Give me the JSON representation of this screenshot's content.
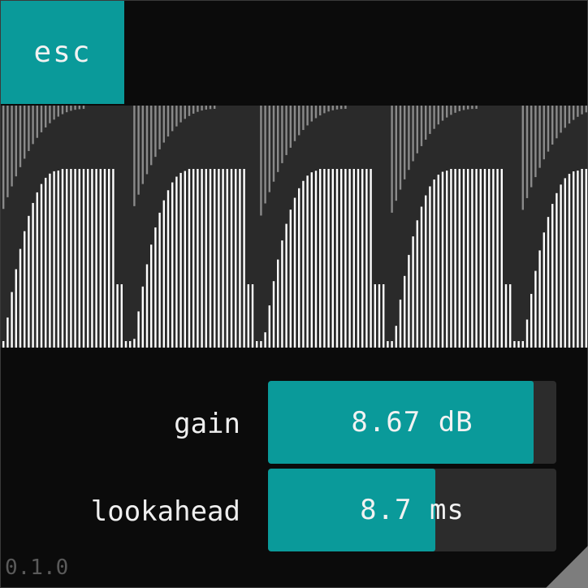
{
  "app": {
    "esc_label": "esc",
    "version": "0.1.0"
  },
  "params": [
    {
      "name": "gain",
      "value_text": "8.67 dB",
      "fraction": 0.92
    },
    {
      "name": "lookahead",
      "value_text": "8.7 ms",
      "fraction": 0.58
    }
  ],
  "colors": {
    "accent": "#0a9a9a",
    "background": "#0b0b0b",
    "meter_background": "#2a2a2a",
    "slider_track": "#2c2c2c",
    "gain_reduction_bars": "#8a8a8a",
    "envelope_bars": "#ffffff",
    "text": "#f2f2f2",
    "version_text": "#5a5a5a"
  },
  "icons": {
    "resize_handle": "resize-corner-icon"
  }
}
